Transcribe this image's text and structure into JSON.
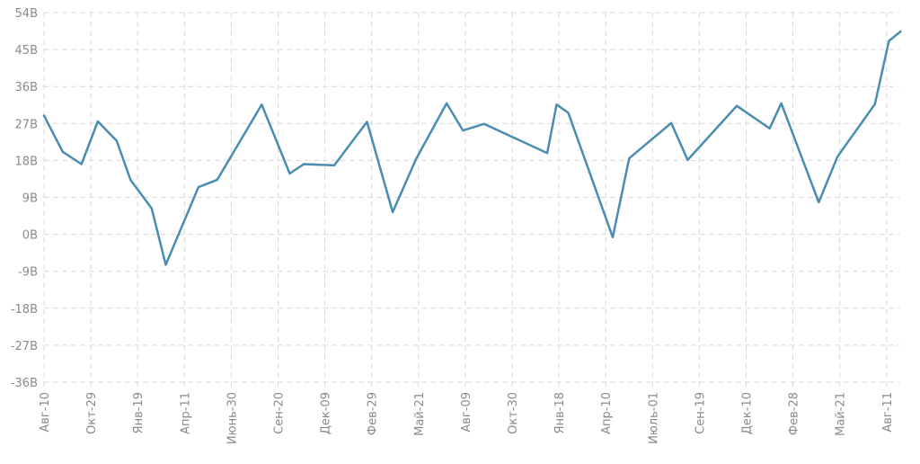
{
  "chart_data": {
    "type": "line",
    "grid": true,
    "legend": "none",
    "y_ticks": [
      "54B",
      "45B",
      "36B",
      "27B",
      "18B",
      "9B",
      "0B",
      "-9B",
      "-18B",
      "-27B",
      "-36B"
    ],
    "x_ticks": [
      "Авг-10",
      "Окт-29",
      "Янв-19",
      "Апр-11",
      "Июнь-30",
      "Сен-20",
      "Дек-09",
      "Фев-29",
      "Май-21",
      "Авг-09",
      "Окт-30",
      "Янв-18",
      "Апр-10",
      "Июль-01",
      "Сен-19",
      "Дек-10",
      "Фев-28",
      "Май-21",
      "Авг-11"
    ],
    "ylim": [
      -36,
      54
    ],
    "y_unit": "B",
    "colors": {
      "line": "#4a8db0",
      "grid": "#d9d9d9",
      "text": "#8a8a8a"
    },
    "series": [
      {
        "x": [
          0,
          0.4,
          0.8,
          1.15,
          1.55,
          1.85,
          2.3,
          2.6,
          3.3,
          3.7,
          4.65,
          5.25,
          5.55,
          6.2,
          6.9,
          7.45,
          7.95,
          8.6,
          8.95,
          9.4,
          10.75,
          10.95,
          11.2,
          12.15,
          12.5,
          13.4,
          13.75,
          14.8,
          15.5,
          15.75,
          16.55,
          16.95,
          17.75,
          18.05,
          18.3
        ],
        "values": [
          28.9,
          20.1,
          17.1,
          27.5,
          22.8,
          13.2,
          6.3,
          -7.4,
          11.5,
          13.3,
          31.6,
          14.8,
          17.1,
          16.8,
          27.4,
          5.4,
          18.4,
          31.9,
          25.3,
          26.9,
          19.8,
          31.6,
          29.6,
          -0.7,
          18.5,
          27.1,
          18.1,
          31.3,
          25.8,
          31.9,
          7.8,
          18.9,
          31.7,
          47.1,
          49.4
        ]
      }
    ]
  }
}
